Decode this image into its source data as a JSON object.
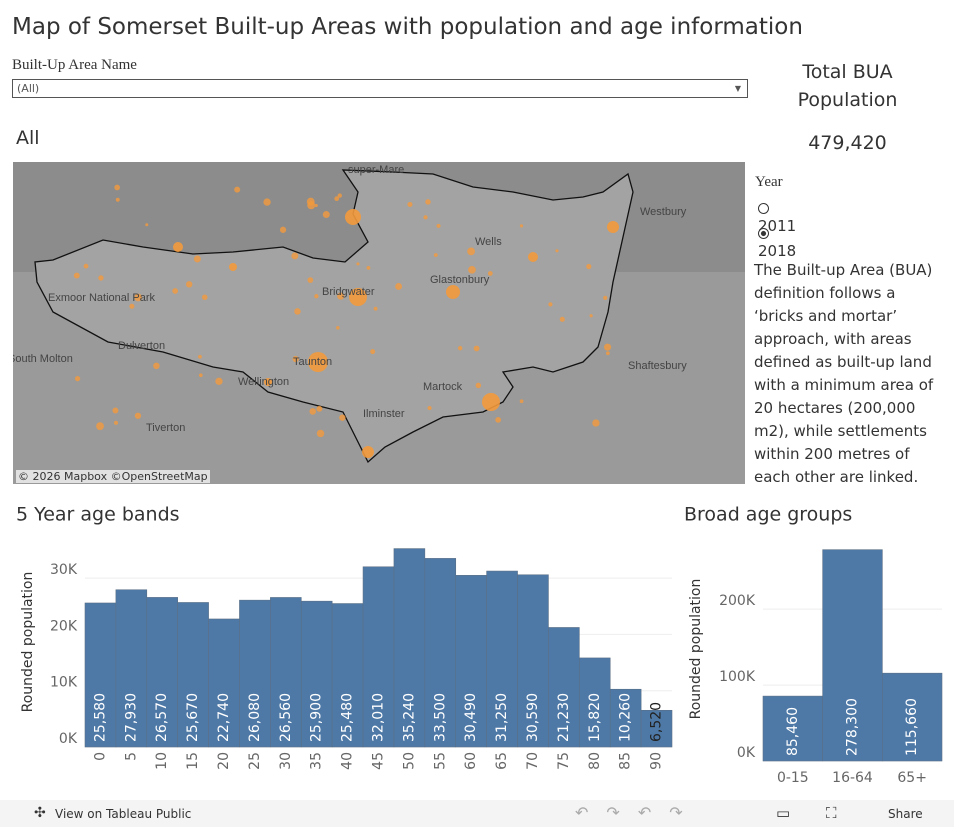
{
  "title": "Map of Somerset Built-up Areas with population and age information",
  "filter": {
    "label": "Built-Up Area Name",
    "value": "(All)"
  },
  "total": {
    "label": "Total BUA Population",
    "value": "479,420"
  },
  "map": {
    "heading": "All",
    "places": [
      "super-Mare",
      "Wells",
      "Westbury",
      "Glastonbury",
      "Exmoor National Park",
      "Bridgwater",
      "Dulverton",
      "South Molton",
      "Taunton",
      "Wellington",
      "Martock",
      "Shaftesbury",
      "Ilminster",
      "Tiverton"
    ],
    "attribution": "© 2026 Mapbox  ©OpenStreetMap"
  },
  "year": {
    "label": "Year",
    "options": [
      "2011",
      "2018"
    ],
    "selected": 1
  },
  "description": "The Built-up Area (BUA) definition follows a ‘bricks and mortar’ approach, with areas defined as built-up land with a minimum area of 20 hectares (200,000 m2), while settlements within 200 metres of each other are linked.",
  "chart_data": [
    {
      "type": "bar",
      "title": "5 Year age bands",
      "y_label": "Rounded population",
      "color": "#4e79a7",
      "categories": [
        "0",
        "5",
        "10",
        "15",
        "20",
        "25",
        "30",
        "35",
        "40",
        "45",
        "50",
        "55",
        "60",
        "65",
        "70",
        "75",
        "80",
        "85",
        "90"
      ],
      "values": [
        25580,
        27930,
        26570,
        25670,
        22740,
        26080,
        26560,
        25900,
        25480,
        32010,
        35240,
        33500,
        30490,
        31250,
        30590,
        21230,
        15820,
        10260,
        6520
      ],
      "value_labels": [
        "25,580",
        "27,930",
        "26,570",
        "25,670",
        "22,740",
        "26,080",
        "26,560",
        "25,900",
        "25,480",
        "32,010",
        "35,240",
        "33,500",
        "30,490",
        "31,250",
        "30,590",
        "21,230",
        "15,820",
        "10,260",
        "6,520"
      ],
      "ylim": [
        0,
        37300
      ],
      "yticks": [
        {
          "value": 0,
          "label": "0K"
        },
        {
          "value": 10000,
          "label": "10K"
        },
        {
          "value": 20000,
          "label": "20K"
        },
        {
          "value": 30000,
          "label": "30K"
        }
      ]
    },
    {
      "type": "bar",
      "title": "Broad age groups",
      "y_label": "Rounded population",
      "color": "#4e79a7",
      "categories": [
        "0-15",
        "16-64",
        "65+"
      ],
      "values": [
        85460,
        278300,
        115660
      ],
      "value_labels": [
        "85,460",
        "278,300",
        "115,660"
      ],
      "ylim": [
        0,
        295000
      ],
      "yticks": [
        {
          "value": 0,
          "label": "0K"
        },
        {
          "value": 100000,
          "label": "100K"
        },
        {
          "value": 200000,
          "label": "200K"
        }
      ]
    }
  ],
  "toolbar": {
    "view": "View on Tableau Public",
    "share": "Share"
  }
}
